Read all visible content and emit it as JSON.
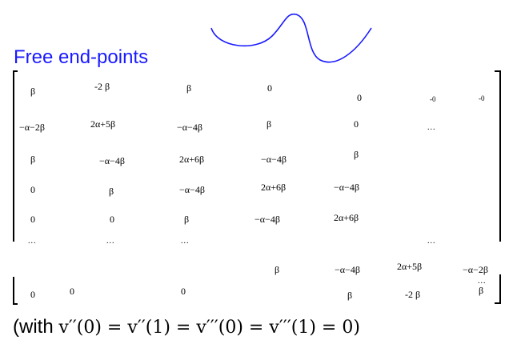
{
  "slide": {
    "title": "Free end-points",
    "footer_prefix": "(with ",
    "footer_math": "v′′(0) = v′′(1) = v′′′(0) = v′′′(1) = 0)",
    "accent_color": "#1a1aff"
  },
  "matrix": {
    "cells": [
      "β",
      "-2 β",
      "β",
      "0",
      "0",
      "-0",
      "-0",
      "−α−2β",
      "2α+5β",
      "−α−4β",
      "β",
      "0",
      "...",
      "β",
      "−α−4β",
      "2α+6β",
      "−α−4β",
      "β",
      "0",
      "β",
      "−α−4β",
      "2α+6β",
      "−α−4β",
      "0",
      "0",
      "β",
      "−α−4β",
      "2α+6β",
      "...",
      "...",
      "...",
      "...",
      "β",
      "−α−4β",
      "2α+5β",
      "−α−2β",
      "0",
      "0",
      "0",
      "β",
      "-2 β",
      "...",
      "β"
    ]
  }
}
